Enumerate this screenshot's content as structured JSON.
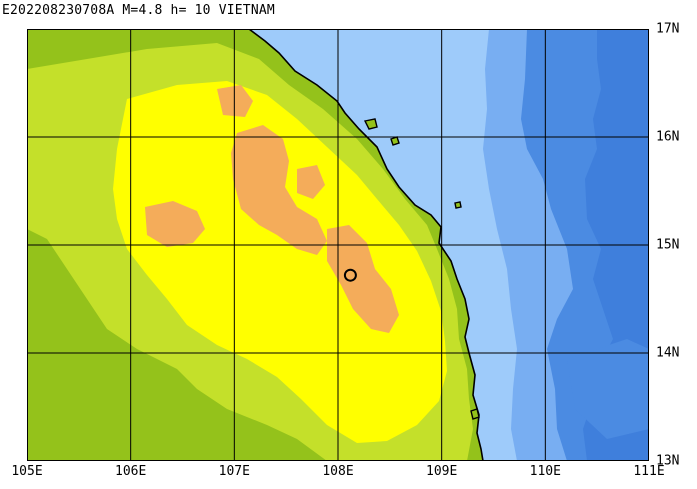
{
  "header": {
    "title": "E202208230708A M=4.8 h= 10 VIETNAM"
  },
  "map": {
    "longitude_labels": [
      "105E",
      "106E",
      "107E",
      "108E",
      "109E",
      "110E",
      "111E"
    ],
    "latitude_labels": [
      "17N",
      "16N",
      "15N",
      "14N",
      "13N"
    ],
    "extent": {
      "lon_min": 105,
      "lon_max": 111,
      "lat_min": 13,
      "lat_max": 17
    },
    "epicenter": {
      "lon": 108.12,
      "lat": 14.72
    },
    "colors": {
      "lowland": "#94c21b",
      "hill": "#c4e02a",
      "upland": "#ffff00",
      "peak": "#f4ac5a",
      "shallow_sea": "#9ecbfa",
      "mid_sea": "#78aef2",
      "deep_sea": "#4b8be2",
      "deepest_sea": "#3f7fdc"
    }
  }
}
